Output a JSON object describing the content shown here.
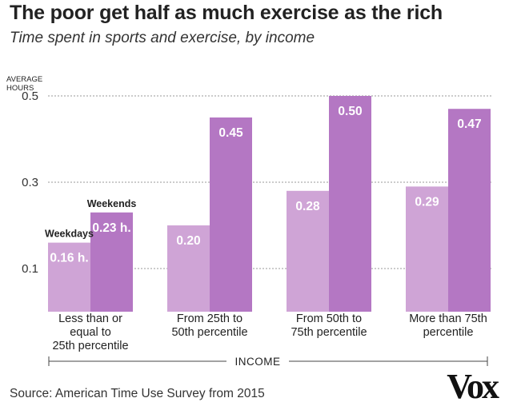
{
  "title": "The poor get half as much exercise as the rich",
  "subtitle": "Time spent in sports and exercise, by income",
  "source": "Source: American Time Use Survey from 2015",
  "logo": "Vox",
  "colors": {
    "weekdays": "#cfa4d6",
    "weekends": "#b477c3",
    "grid": "#999999",
    "text": "#222222",
    "label_on_bar": "#ffffff"
  },
  "chart_data": {
    "type": "bar",
    "title": "The poor get half as much exercise as the rich",
    "subtitle": "Time spent in sports and exercise, by income",
    "ylabel_lines": [
      "AVERAGE",
      "HOURS"
    ],
    "xlabel": "INCOME",
    "ylim": [
      0,
      0.5
    ],
    "yticks": [
      0.1,
      0.3,
      0.5
    ],
    "ytick_labels": [
      "0.1",
      "0.3",
      "0.5"
    ],
    "grid": true,
    "categories": [
      [
        "Less than or",
        "equal to",
        "25th percentile"
      ],
      [
        "From 25th to",
        "50th percentile"
      ],
      [
        "From 50th to",
        "75th percentile"
      ],
      [
        "More than 75th",
        "percentile"
      ]
    ],
    "series": [
      {
        "name": "Weekdays",
        "values": [
          0.16,
          0.2,
          0.28,
          0.29
        ],
        "labels": [
          "0.16 h.",
          "0.20",
          "0.28",
          "0.29"
        ]
      },
      {
        "name": "Weekends",
        "values": [
          0.23,
          0.45,
          0.5,
          0.47
        ],
        "labels": [
          "0.23 h.",
          "0.45",
          "0.50",
          "0.47"
        ]
      }
    ],
    "legend_annotations": [
      "Weekdays",
      "Weekends"
    ]
  }
}
